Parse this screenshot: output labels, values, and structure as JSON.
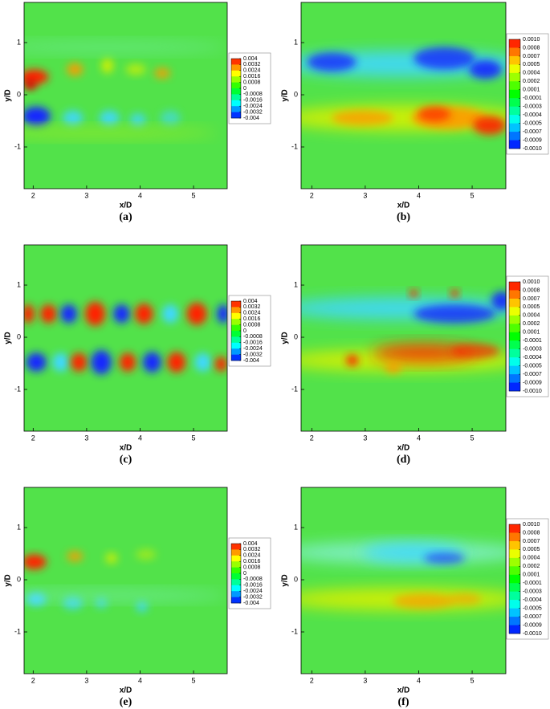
{
  "chart_data": [
    {
      "type": "contour",
      "caption": "(a)",
      "xlabel": "x/D",
      "ylabel": "y/D",
      "xlim": [
        1.83,
        5.63
      ],
      "ylim": [
        -1.8,
        1.77
      ],
      "xticks": [
        2,
        3,
        4,
        5
      ],
      "yticks": [
        -1,
        0,
        1
      ],
      "levels": [
        0.004,
        0.0032,
        0.0024,
        0.0016,
        0.0008,
        0,
        -0.0008,
        -0.0016,
        -0.0024,
        -0.0032,
        -0.004
      ]
    },
    {
      "type": "contour",
      "caption": "(b)",
      "xlabel": "x/D",
      "ylabel": "y/D",
      "xlim": [
        1.8,
        5.63
      ],
      "ylim": [
        -1.8,
        1.77
      ],
      "xticks": [
        2,
        3,
        4,
        5
      ],
      "yticks": [
        -1,
        0,
        1
      ],
      "levels": [
        {
          "value": 0.001,
          "label": "0.0010"
        },
        0.0008,
        0.0007,
        0.0005,
        0.0004,
        0.0002,
        0.0001,
        -0.0001,
        -0.0003,
        -0.0004,
        -0.0005,
        -0.0007,
        -0.0009,
        {
          "value": -0.001,
          "label": "-0.0010"
        }
      ]
    },
    {
      "type": "contour",
      "caption": "(c)",
      "xlabel": "x/D",
      "ylabel": "y/D",
      "xlim": [
        1.83,
        5.63
      ],
      "ylim": [
        -1.8,
        1.77
      ],
      "xticks": [
        2,
        3,
        4,
        5
      ],
      "yticks": [
        -1,
        0,
        1
      ],
      "levels": [
        0.004,
        0.0032,
        0.0024,
        0.0016,
        0.0008,
        0,
        -0.0008,
        -0.0016,
        -0.0024,
        -0.0032,
        -0.004
      ]
    },
    {
      "type": "contour",
      "caption": "(d)",
      "xlabel": "x/D",
      "ylabel": "y/D",
      "xlim": [
        1.8,
        5.63
      ],
      "ylim": [
        -1.8,
        1.77
      ],
      "xticks": [
        2,
        3,
        4,
        5
      ],
      "yticks": [
        -1,
        0,
        1
      ],
      "levels": [
        {
          "value": 0.001,
          "label": "0.0010"
        },
        0.0008,
        0.0007,
        0.0005,
        0.0004,
        0.0002,
        0.0001,
        -0.0001,
        -0.0003,
        -0.0004,
        -0.0005,
        -0.0007,
        -0.0009,
        {
          "value": -0.001,
          "label": "-0.0010"
        }
      ]
    },
    {
      "type": "contour",
      "caption": "(e)",
      "xlabel": "x/D",
      "ylabel": "y/D",
      "xlim": [
        1.83,
        5.63
      ],
      "ylim": [
        -1.8,
        1.77
      ],
      "xticks": [
        2,
        3,
        4,
        5
      ],
      "yticks": [
        -1,
        0,
        1
      ],
      "levels": [
        0.004,
        0.0032,
        0.0024,
        0.0016,
        0.0008,
        0,
        -0.0008,
        -0.0016,
        -0.0024,
        -0.0032,
        -0.004
      ]
    },
    {
      "type": "contour",
      "caption": "(f)",
      "xlabel": "x/D",
      "ylabel": "y/D",
      "xlim": [
        1.8,
        5.63
      ],
      "ylim": [
        -1.8,
        1.77
      ],
      "xticks": [
        2,
        3,
        4,
        5
      ],
      "yticks": [
        -1,
        0,
        1
      ],
      "levels": [
        {
          "value": 0.001,
          "label": "0.0010"
        },
        0.0008,
        0.0007,
        0.0005,
        0.0004,
        0.0002,
        0.0001,
        -0.0001,
        -0.0003,
        -0.0004,
        -0.0005,
        -0.0007,
        -0.0009,
        {
          "value": -0.001,
          "label": "-0.0010"
        }
      ]
    }
  ]
}
